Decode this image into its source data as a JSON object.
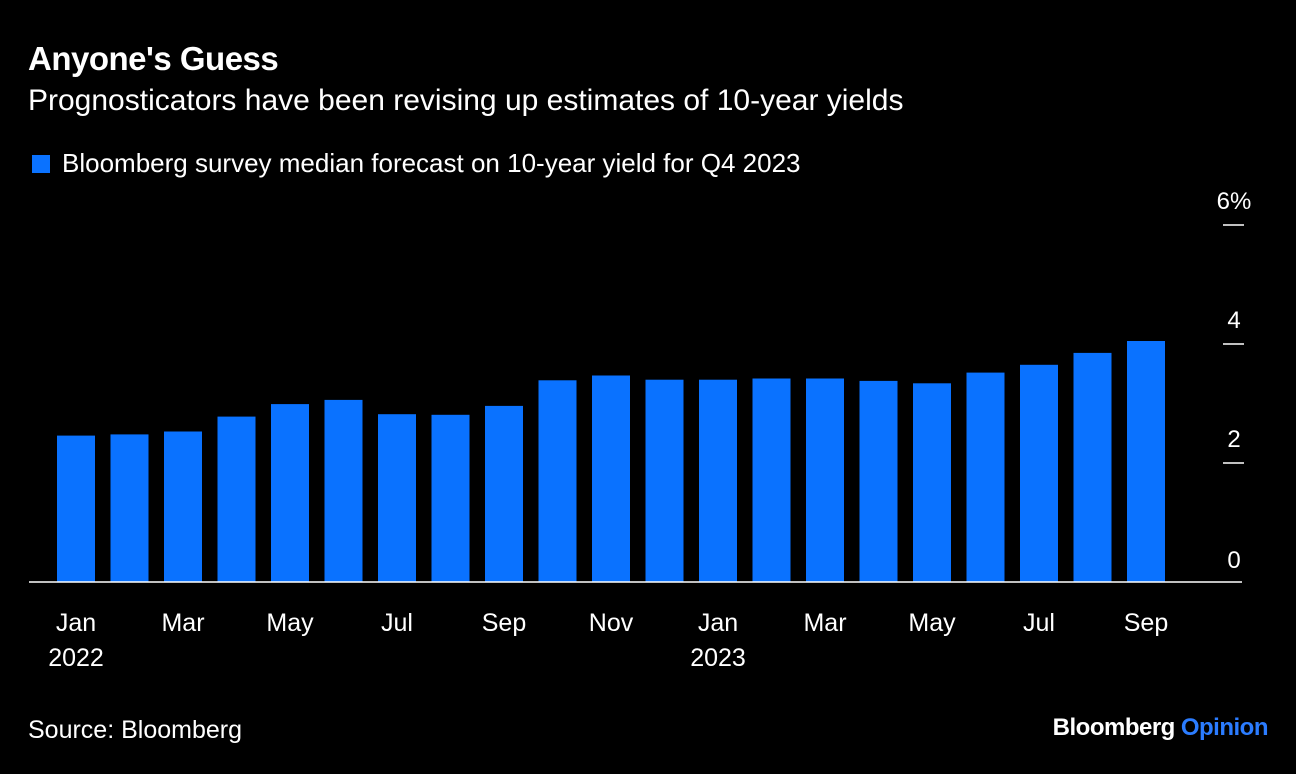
{
  "header": {
    "title": "Anyone's Guess",
    "subtitle": "Prognosticators have been revising up estimates of 10-year yields"
  },
  "footer": {
    "source": "Source: Bloomberg",
    "brand_name": "Bloomberg",
    "brand_section": "Opinion"
  },
  "colors": {
    "background": "#000000",
    "bar": "#0a72ff",
    "text": "#ffffff",
    "axis": "#ffffff",
    "brand_accent": "#2b7cff"
  },
  "chart_data": {
    "type": "bar",
    "title": "Anyone's Guess",
    "subtitle": "Prognosticators have been revising up estimates of 10-year yields",
    "categories": [
      "Jan 2022",
      "Feb 2022",
      "Mar 2022",
      "Apr 2022",
      "May 2022",
      "Jun 2022",
      "Jul 2022",
      "Aug 2022",
      "Sep 2022",
      "Oct 2022",
      "Nov 2022",
      "Dec 2022",
      "Jan 2023",
      "Feb 2023",
      "Mar 2023",
      "Apr 2023",
      "May 2023",
      "Jun 2023",
      "Jul 2023",
      "Aug 2023",
      "Sep 2023"
    ],
    "series": [
      {
        "name": "Bloomberg survey median forecast on 10-year yield for Q4 2023",
        "values": [
          2.46,
          2.48,
          2.53,
          2.78,
          2.99,
          3.06,
          2.82,
          2.81,
          2.96,
          3.39,
          3.47,
          3.4,
          3.4,
          3.42,
          3.42,
          3.38,
          3.34,
          3.52,
          3.65,
          3.85,
          4.05
        ]
      }
    ],
    "x_tick_labels": [
      {
        "index": 0,
        "month": "Jan",
        "year": "2022"
      },
      {
        "index": 2,
        "month": "Mar",
        "year": ""
      },
      {
        "index": 4,
        "month": "May",
        "year": ""
      },
      {
        "index": 6,
        "month": "Jul",
        "year": ""
      },
      {
        "index": 8,
        "month": "Sep",
        "year": ""
      },
      {
        "index": 10,
        "month": "Nov",
        "year": ""
      },
      {
        "index": 12,
        "month": "Jan",
        "year": "2023"
      },
      {
        "index": 14,
        "month": "Mar",
        "year": ""
      },
      {
        "index": 16,
        "month": "May",
        "year": ""
      },
      {
        "index": 18,
        "month": "Jul",
        "year": ""
      },
      {
        "index": 20,
        "month": "Sep",
        "year": ""
      }
    ],
    "y_ticks": [
      {
        "value": 0,
        "label": "0"
      },
      {
        "value": 2,
        "label": "2"
      },
      {
        "value": 4,
        "label": "4"
      },
      {
        "value": 6,
        "label": "6%"
      }
    ],
    "ylim": [
      0,
      6
    ],
    "xlabel": "",
    "ylabel": "",
    "y_axis_position": "right",
    "grid": false,
    "legend_position": "top-left"
  }
}
